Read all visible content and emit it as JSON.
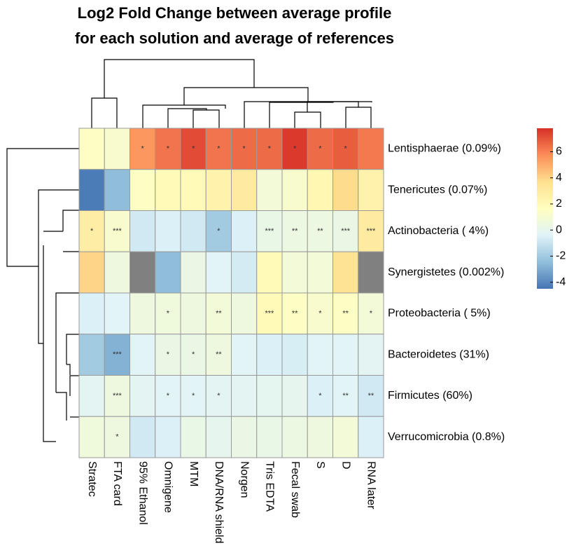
{
  "chart_data": {
    "type": "heatmap",
    "title": [
      "Log2 Fold Change between average profile",
      "for each solution and average of references"
    ],
    "columns": [
      "Stratec",
      "FTA card",
      "95% Ethanol",
      "Omnigene",
      "MTM",
      "DNA/RNA shield",
      "Norgen",
      "Tris EDTA",
      "Fecal swab",
      "S",
      "D",
      "RNA later"
    ],
    "rows": [
      "Lentisphaerae (0.09%)",
      "Tenericutes (0.07%)",
      "Actinobacteria ( 4%)",
      "Synergistetes (0.002%)",
      "Proteobacteria ( 5%)",
      "Bacteroidetes (31%)",
      "Firmicutes (60%)",
      "Verrucomicrobia (0.8%)"
    ],
    "values": [
      [
        1.5,
        1.2,
        5.5,
        6.3,
        7.2,
        6.3,
        6.5,
        6.5,
        7.6,
        6.5,
        6.8,
        6.2
      ],
      [
        -4.3,
        -2.5,
        1.5,
        2,
        2,
        2.5,
        3,
        0.8,
        1.2,
        2.2,
        3.8,
        2.5
      ],
      [
        2.8,
        1.2,
        -0.8,
        -0.5,
        -0.8,
        -2,
        -0.5,
        0.2,
        0.4,
        0.4,
        0.3,
        3
      ],
      [
        4,
        0.5,
        null,
        -2.5,
        0.3,
        -0.3,
        -0.7,
        2,
        0.8,
        0.8,
        3.5,
        null
      ],
      [
        -0.5,
        -0.3,
        0.5,
        0.6,
        0.5,
        0.8,
        0.5,
        2,
        1.5,
        1.2,
        1.5,
        0.8
      ],
      [
        -2,
        -2.8,
        -0.3,
        0.3,
        0.3,
        0.5,
        -0.3,
        -0.5,
        -0.6,
        -0.3,
        -0.3,
        -0.2
      ],
      [
        -0.2,
        0.5,
        -0.2,
        -0.3,
        -0.3,
        -0.2,
        -0.2,
        -0.1,
        0,
        -0.5,
        -0.3,
        -0.8
      ],
      [
        0.6,
        0.5,
        -0.8,
        -0.5,
        0.2,
        0,
        0.3,
        0.2,
        0.4,
        0.5,
        0.8,
        -0.5
      ]
    ],
    "annotations": [
      [
        null,
        null,
        "*",
        "*",
        "*",
        "*",
        "*",
        "*",
        "*",
        "*",
        "*",
        null
      ],
      [
        null,
        null,
        null,
        null,
        null,
        null,
        null,
        null,
        null,
        null,
        null,
        null
      ],
      [
        "*",
        "***",
        null,
        null,
        null,
        "*",
        null,
        "***",
        "**",
        "**",
        "***",
        "***"
      ],
      [
        null,
        null,
        null,
        null,
        null,
        null,
        null,
        null,
        null,
        null,
        null,
        null
      ],
      [
        null,
        null,
        null,
        "*",
        null,
        "**",
        null,
        "***",
        "**",
        "*",
        "**",
        "*"
      ],
      [
        null,
        "***",
        null,
        "*",
        "*",
        "**",
        null,
        null,
        null,
        null,
        null,
        null
      ],
      [
        null,
        "***",
        null,
        "*",
        "*",
        "*",
        null,
        null,
        null,
        "*",
        "**",
        "**"
      ],
      [
        null,
        "*",
        null,
        null,
        null,
        null,
        null,
        null,
        null,
        null,
        null,
        null
      ]
    ],
    "na_color": "#808080",
    "colors": [
      "#4575b4",
      "#91bfdb",
      "#e0f3f8",
      "#ffffbf",
      "#fee090",
      "#fc8d59",
      "#d73027"
    ],
    "clim": [
      -4.5,
      7.8
    ],
    "cticks": [
      -4,
      -2,
      0,
      2,
      4,
      6
    ]
  }
}
